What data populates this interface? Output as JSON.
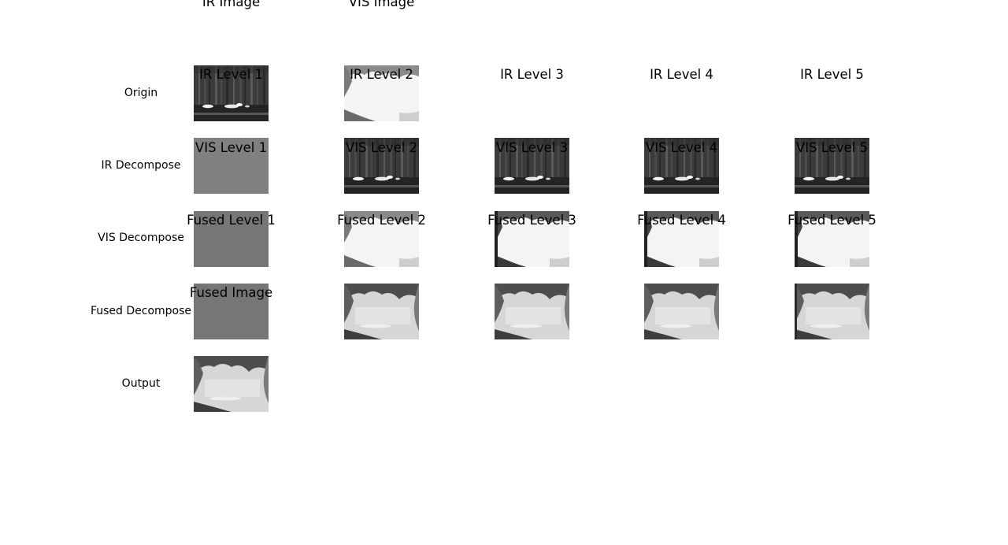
{
  "row_labels": {
    "origin": "Origin",
    "ir_decompose": "IR Decompose",
    "vis_decompose": "VIS Decompose",
    "fused_decompose": "Fused Decompose",
    "output": "Output"
  },
  "panels": {
    "origin": [
      {
        "title": "IR Image",
        "style": "ir"
      },
      {
        "title": "VIS Image",
        "style": "vis"
      }
    ],
    "ir_decompose": [
      {
        "title": "IR Level 1",
        "style": "flat-light"
      },
      {
        "title": "IR Level 2",
        "style": "ir"
      },
      {
        "title": "IR Level 3",
        "style": "ir"
      },
      {
        "title": "IR Level 4",
        "style": "ir"
      },
      {
        "title": "IR Level 5",
        "style": "ir-blur"
      }
    ],
    "vis_decompose": [
      {
        "title": "VIS Level 1",
        "style": "flat-dark"
      },
      {
        "title": "VIS Level 2",
        "style": "vis"
      },
      {
        "title": "VIS Level 3",
        "style": "vis-dark"
      },
      {
        "title": "VIS Level 4",
        "style": "vis-dark"
      },
      {
        "title": "VIS Level 5",
        "style": "vis-blur"
      }
    ],
    "fused_decompose": [
      {
        "title": "Fused Level 1",
        "style": "flat-dark"
      },
      {
        "title": "Fused Level 2",
        "style": "fused"
      },
      {
        "title": "Fused Level 3",
        "style": "fused"
      },
      {
        "title": "Fused Level 4",
        "style": "fused"
      },
      {
        "title": "Fused Level 5",
        "style": "fused-blur"
      }
    ],
    "output": [
      {
        "title": "Fused Image",
        "style": "fused"
      }
    ]
  }
}
